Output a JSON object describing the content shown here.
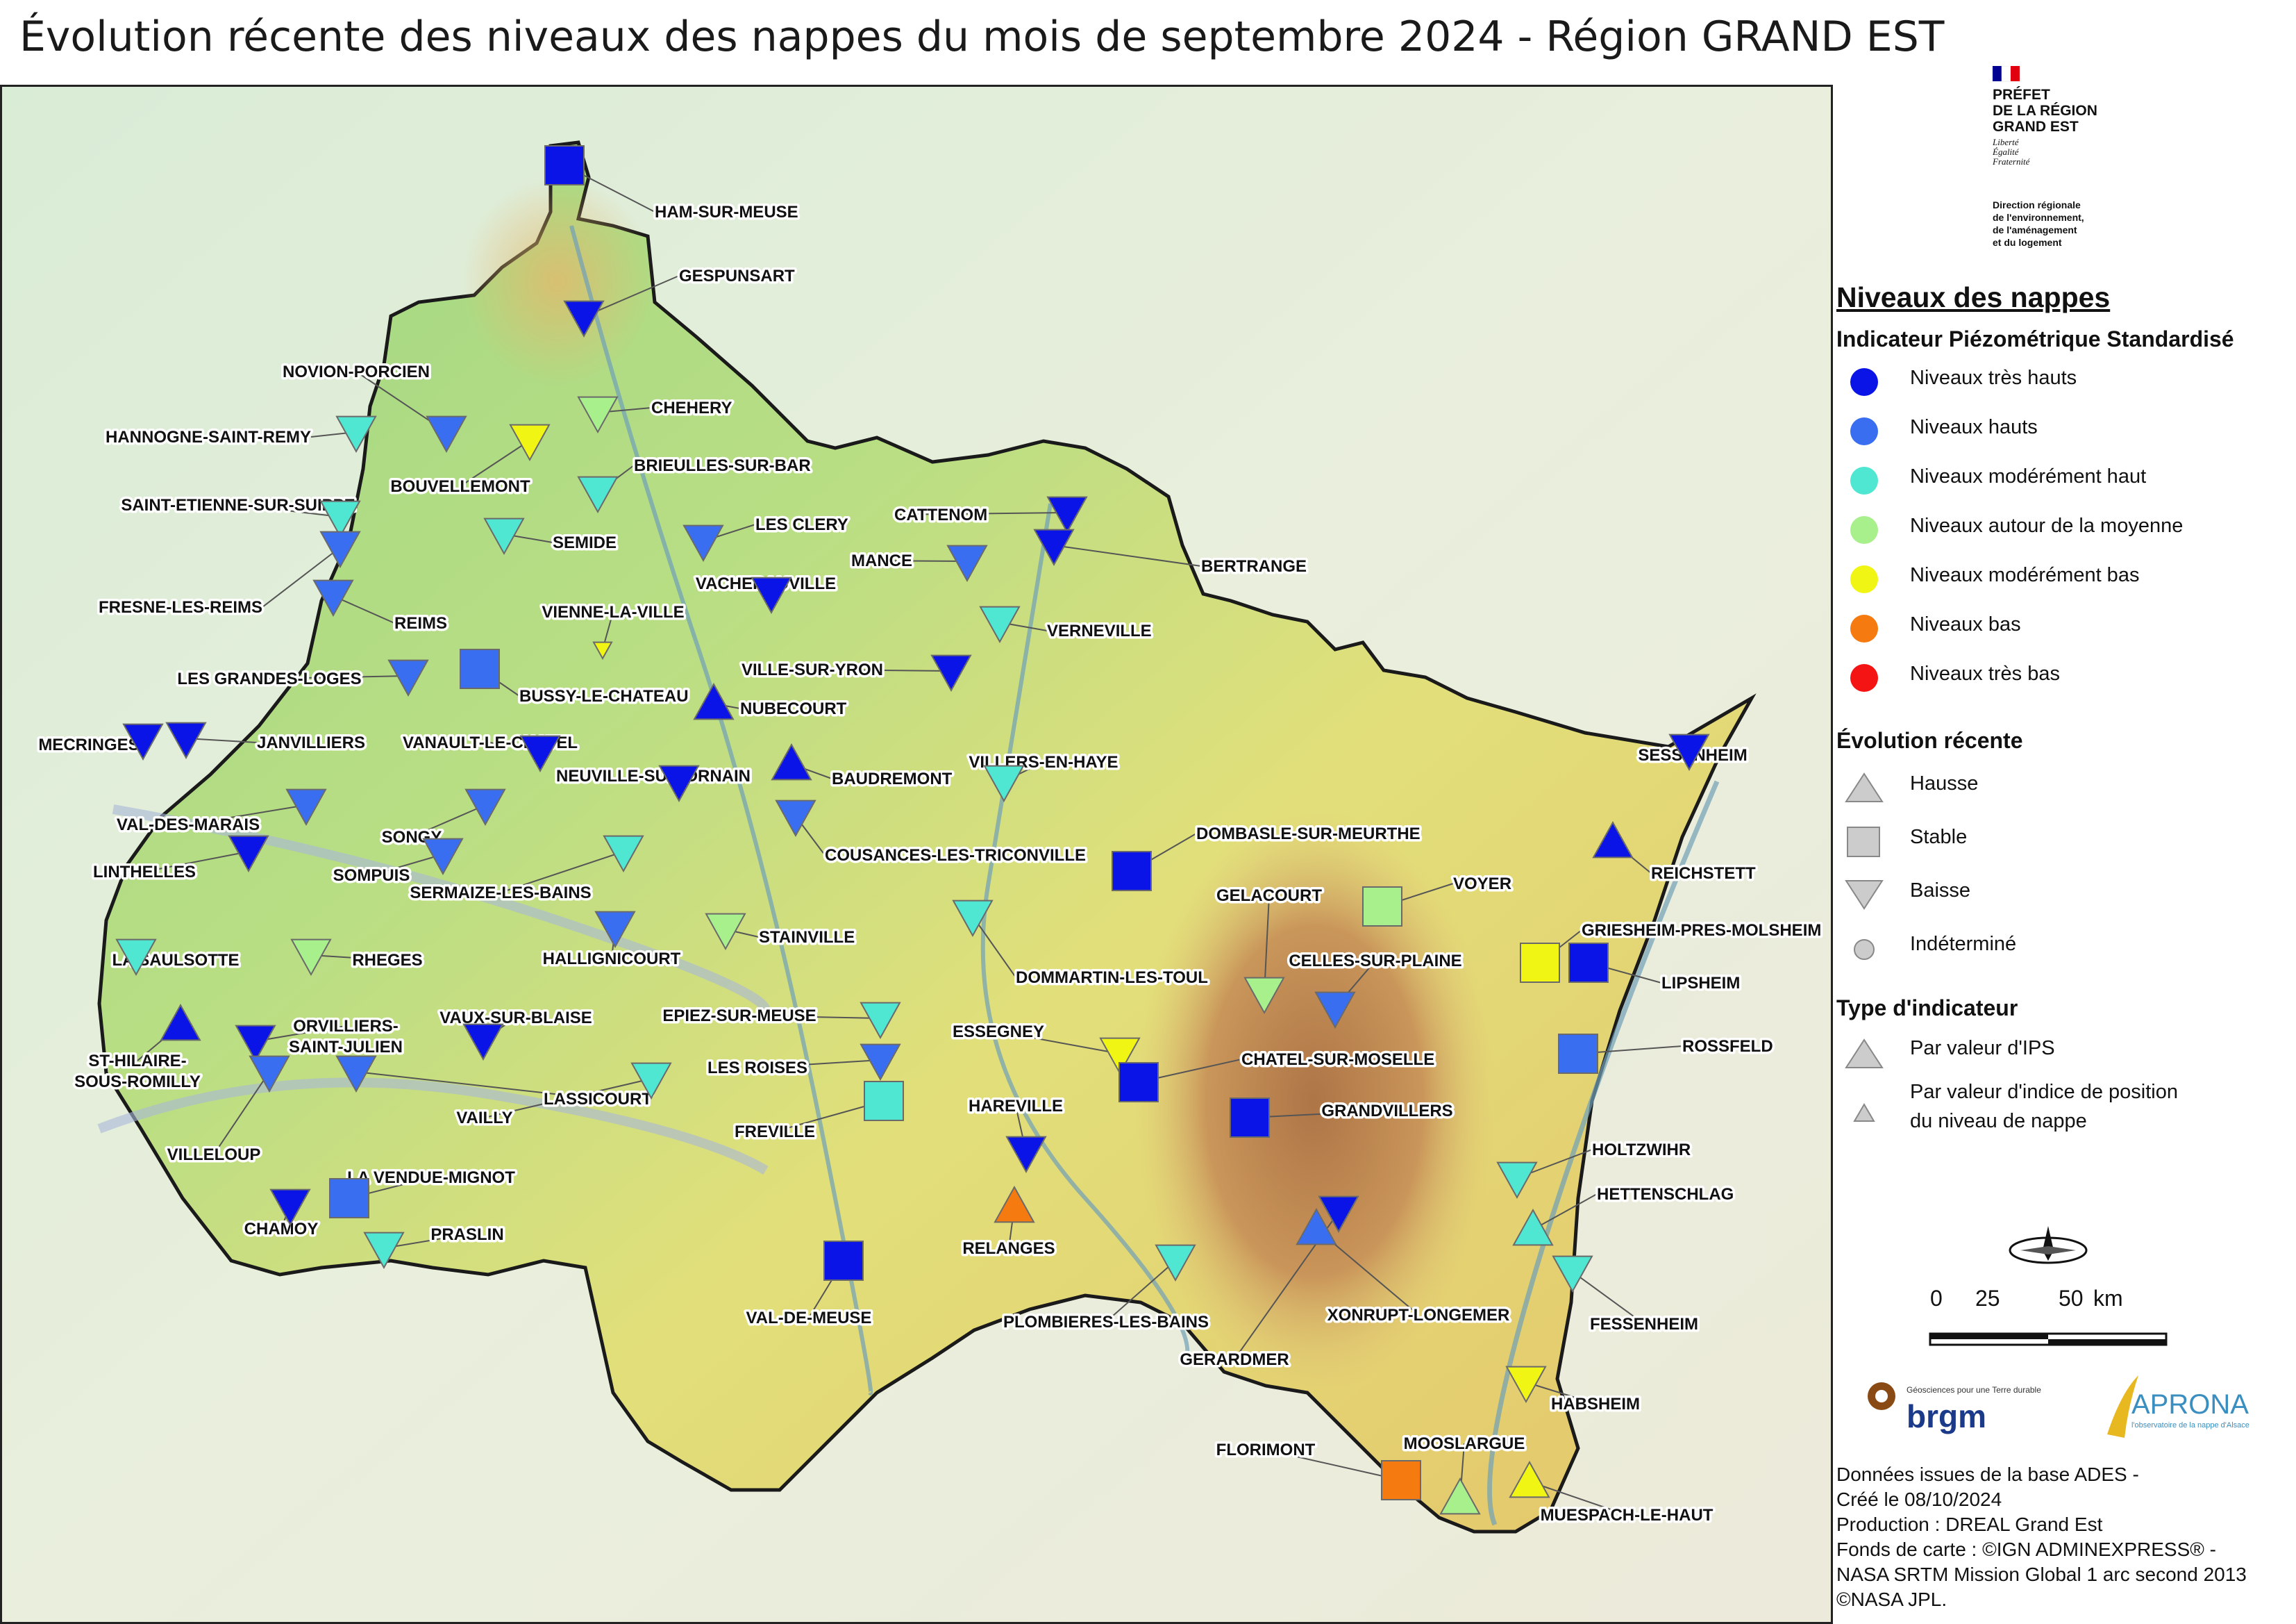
{
  "title": "Évolution récente des niveaux des nappes du mois de septembre 2024 - Région GRAND EST",
  "logo": {
    "lines": [
      "PRÉFET",
      "DE LA RÉGION",
      "GRAND EST"
    ],
    "motto": [
      "Liberté",
      "Égalité",
      "Fraternité"
    ],
    "department": [
      "Direction régionale",
      "de l'environnement,",
      "de l'aménagement",
      "et du logement"
    ]
  },
  "legend": {
    "title": "Niveaux des nappes",
    "ips_title": "Indicateur Piézométrique Standardisé",
    "levels": [
      {
        "label": "Niveaux très hauts",
        "color": "#0a14e6"
      },
      {
        "label": "Niveaux hauts",
        "color": "#3a6ef0"
      },
      {
        "label": "Niveaux modérément haut",
        "color": "#4fe6d2"
      },
      {
        "label": "Niveaux autour de la moyenne",
        "color": "#a8f08c"
      },
      {
        "label": "Niveaux modérément bas",
        "color": "#f0f514"
      },
      {
        "label": "Niveaux bas",
        "color": "#f57a10"
      },
      {
        "label": "Niveaux très bas",
        "color": "#f51414"
      }
    ],
    "evolution_title": "Évolution récente",
    "evolution": [
      {
        "label": "Hausse",
        "icon": "triangle-up"
      },
      {
        "label": "Stable",
        "icon": "square"
      },
      {
        "label": "Baisse",
        "icon": "triangle-down"
      },
      {
        "label": "Indéterminé",
        "icon": "circle"
      }
    ],
    "type_title": "Type d'indicateur",
    "types": [
      {
        "label": "Par valeur d'IPS",
        "icon": "large-triangle"
      },
      {
        "label": "Par valeur d'indice de position",
        "label2": "du niveau de nappe",
        "icon": "small-triangle"
      }
    ]
  },
  "scale": {
    "ticks": [
      "0",
      "25",
      "50"
    ],
    "unit": "km"
  },
  "partners": {
    "brgm_tagline": "Géosciences pour une Terre durable",
    "brgm": "brgm",
    "aprona": "APRONA",
    "aprona_sub": "l'observatoire de la nappe d'Alsace"
  },
  "credits": [
    "Données issues de la base ADES -",
    "Créé le 08/10/2024",
    "Production : DREAL Grand Est",
    "Fonds de carte : ©IGN ADMINEXPRESS® -",
    "NASA SRTM Mission Global 1 arc second 2013",
    "©NASA JPL."
  ],
  "stations": [
    {
      "name": "HAM-SUR-MEUSE",
      "level": "very_high",
      "trend": "stable"
    },
    {
      "name": "GESPUNSART",
      "level": "very_high",
      "trend": "down"
    },
    {
      "name": "NOVION-PORCIEN",
      "level": "high",
      "trend": "down"
    },
    {
      "name": "CHEHERY",
      "level": "average",
      "trend": "down"
    },
    {
      "name": "HANNOGNE-SAINT-REMY",
      "level": "moderately_high",
      "trend": "down"
    },
    {
      "name": "BOUVELLEMONT",
      "level": "moderately_low",
      "trend": "down"
    },
    {
      "name": "BRIEULLES-SUR-BAR",
      "level": "moderately_high",
      "trend": "down"
    },
    {
      "name": "SAINT-ETIENNE-SUR-SUIPPE",
      "level": "moderately_high",
      "trend": "down"
    },
    {
      "name": "SEMIDE",
      "level": "moderately_high",
      "trend": "down"
    },
    {
      "name": "LES CLERY",
      "level": "high",
      "trend": "down"
    },
    {
      "name": "CATTENOM",
      "level": "very_high",
      "trend": "down"
    },
    {
      "name": "MANCE",
      "level": "high",
      "trend": "down"
    },
    {
      "name": "BERTRANGE",
      "level": "very_high",
      "trend": "down"
    },
    {
      "name": "FRESNE-LES-REIMS",
      "level": "high",
      "trend": "down"
    },
    {
      "name": "REIMS",
      "level": "high",
      "trend": "down"
    },
    {
      "name": "VACHERAUVILLE",
      "level": "very_high",
      "trend": "down"
    },
    {
      "name": "VIENNE-LA-VILLE",
      "level": "moderately_low",
      "trend": "down"
    },
    {
      "name": "VERNEVILLE",
      "level": "moderately_high",
      "trend": "down"
    },
    {
      "name": "VILLE-SUR-YRON",
      "level": "very_high",
      "trend": "down"
    },
    {
      "name": "LES GRANDES-LOGES",
      "level": "high",
      "trend": "down"
    },
    {
      "name": "BUSSY-LE-CHATEAU",
      "level": "high",
      "trend": "stable"
    },
    {
      "name": "NUBECOURT",
      "level": "very_high",
      "trend": "up"
    },
    {
      "name": "MECRINGES",
      "level": "very_high",
      "trend": "down"
    },
    {
      "name": "JANVILLIERS",
      "level": "very_high",
      "trend": "down"
    },
    {
      "name": "VANAULT-LE-CHATEL",
      "level": "very_high",
      "trend": "down"
    },
    {
      "name": "NEUVILLE-SUR-ORNAIN",
      "level": "very_high",
      "trend": "down"
    },
    {
      "name": "BAUDREMONT",
      "level": "very_high",
      "trend": "up"
    },
    {
      "name": "VILLERS-EN-HAYE",
      "level": "moderately_high",
      "trend": "down"
    },
    {
      "name": "SESSENHEIM",
      "level": "very_high",
      "trend": "down"
    },
    {
      "name": "VAL-DES-MARAIS",
      "level": "high",
      "trend": "down"
    },
    {
      "name": "SONGY",
      "level": "high",
      "trend": "down"
    },
    {
      "name": "COUSANCES-LES-TRICONVILLE",
      "level": "high",
      "trend": "down"
    },
    {
      "name": "DOMBASLE-SUR-MEURTHE",
      "level": "very_high",
      "trend": "stable"
    },
    {
      "name": "REICHSTETT",
      "level": "very_high",
      "trend": "up"
    },
    {
      "name": "LINTHELLES",
      "level": "very_high",
      "trend": "down"
    },
    {
      "name": "SOMPUIS",
      "level": "high",
      "trend": "down"
    },
    {
      "name": "SERMAIZE-LES-BAINS",
      "level": "moderately_high",
      "trend": "down"
    },
    {
      "name": "GELACOURT",
      "level": "average",
      "trend": "down"
    },
    {
      "name": "VOYER",
      "level": "average",
      "trend": "stable"
    },
    {
      "name": "GRIESHEIM-PRES-MOLSHEIM",
      "level": "moderately_low",
      "trend": "stable"
    },
    {
      "name": "LIPSHEIM",
      "level": "very_high",
      "trend": "stable"
    },
    {
      "name": "STAINVILLE",
      "level": "average",
      "trend": "down"
    },
    {
      "name": "HALLIGNICOURT",
      "level": "high",
      "trend": "down"
    },
    {
      "name": "LA SAULSOTTE",
      "level": "moderately_high",
      "trend": "down"
    },
    {
      "name": "RHEGES",
      "level": "average",
      "trend": "down"
    },
    {
      "name": "DOMMARTIN-LES-TOUL",
      "level": "moderately_high",
      "trend": "down"
    },
    {
      "name": "CELLES-SUR-PLAINE",
      "level": "high",
      "trend": "down"
    },
    {
      "name": "ORVILLIERS-SAINT-JULIEN",
      "level": "very_high",
      "trend": "down"
    },
    {
      "name": "VAUX-SUR-BLAISE",
      "level": "very_high",
      "trend": "down"
    },
    {
      "name": "EPIEZ-SUR-MEUSE",
      "level": "moderately_high",
      "trend": "down"
    },
    {
      "name": "ESSEGNEY",
      "level": "moderately_low",
      "trend": "down"
    },
    {
      "name": "ROSSFELD",
      "level": "high",
      "trend": "stable"
    },
    {
      "name": "ST-HILAIRE-SOUS-ROMILLY",
      "level": "very_high",
      "trend": "up"
    },
    {
      "name": "VILLELOUP",
      "level": "high",
      "trend": "down"
    },
    {
      "name": "LASSICOURT",
      "level": "high",
      "trend": "down"
    },
    {
      "name": "LES ROISES",
      "level": "high",
      "trend": "down"
    },
    {
      "name": "CHATEL-SUR-MOSELLE",
      "level": "very_high",
      "trend": "stable"
    },
    {
      "name": "VAILLY",
      "level": "moderately_high",
      "trend": "down"
    },
    {
      "name": "FREVILLE",
      "level": "moderately_high",
      "trend": "stable"
    },
    {
      "name": "GRANDVILLERS",
      "level": "very_high",
      "trend": "stable"
    },
    {
      "name": "HAREVILLE",
      "level": "very_high",
      "trend": "down"
    },
    {
      "name": "HOLTZWIHR",
      "level": "moderately_high",
      "trend": "down"
    },
    {
      "name": "LA VENDUE-MIGNOT",
      "level": "high",
      "trend": "stable"
    },
    {
      "name": "CHAMOY",
      "level": "very_high",
      "trend": "down"
    },
    {
      "name": "HETTENSCHLAG",
      "level": "moderately_high",
      "trend": "up"
    },
    {
      "name": "PRASLIN",
      "level": "moderately_high",
      "trend": "down"
    },
    {
      "name": "RELANGES",
      "level": "low",
      "trend": "up"
    },
    {
      "name": "XONRUPT-LONGEMER",
      "level": "high",
      "trend": "up"
    },
    {
      "name": "VAL-DE-MEUSE",
      "level": "very_high",
      "trend": "stable"
    },
    {
      "name": "PLOMBIERES-LES-BAINS",
      "level": "moderately_high",
      "trend": "down"
    },
    {
      "name": "FESSENHEIM",
      "level": "moderately_high",
      "trend": "down"
    },
    {
      "name": "GERARDMER",
      "level": "very_high",
      "trend": "down"
    },
    {
      "name": "HABSHEIM",
      "level": "moderately_low",
      "trend": "down"
    },
    {
      "name": "FLORIMONT",
      "level": "low",
      "trend": "stable"
    },
    {
      "name": "MOOSLARGUE",
      "level": "average",
      "trend": "up"
    },
    {
      "name": "MUESPACH-LE-HAUT",
      "level": "moderately_low",
      "trend": "up"
    }
  ]
}
